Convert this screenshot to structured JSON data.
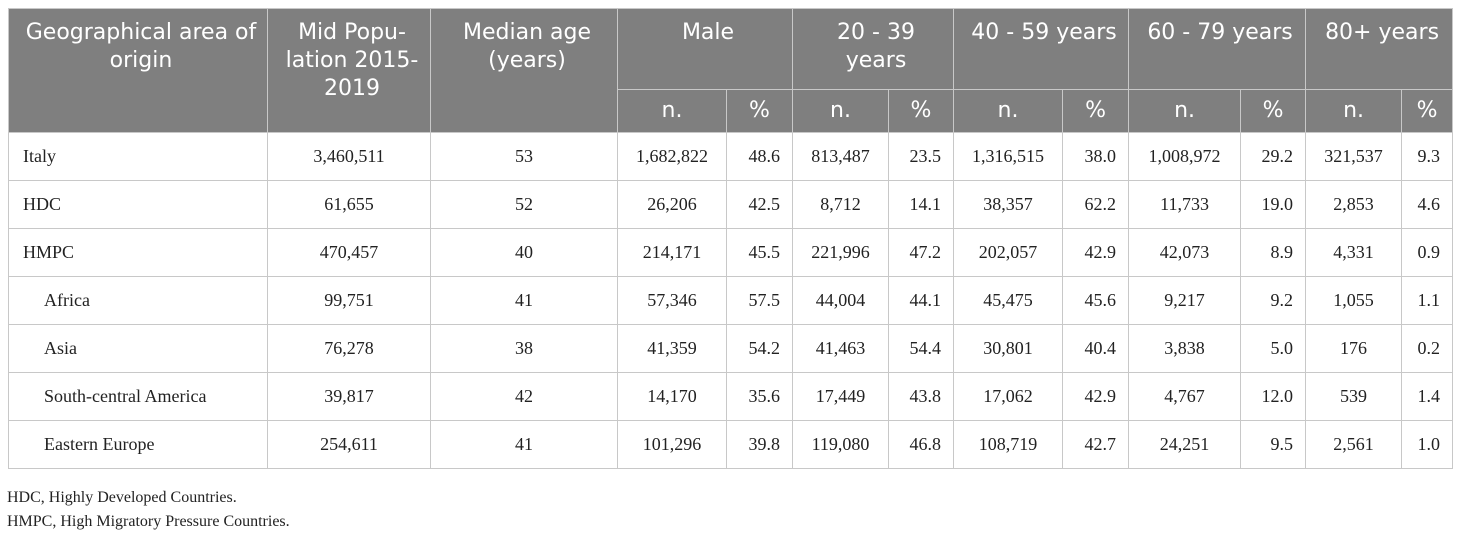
{
  "table": {
    "header": [
      "Geographical area of origin",
      "Mid Popu-lation 2015-2019",
      "Median age (years)",
      "Male",
      "20 - 39 years",
      "40 - 59 years",
      "60 - 79 years",
      "80+ years"
    ],
    "subheader": [
      "n.",
      "%",
      "n.",
      "%",
      "n.",
      "%",
      "n.",
      "%",
      "n.",
      "%"
    ],
    "rows": [
      [
        "Italy",
        "3,460,511",
        "53",
        "1,682,822",
        "48.6",
        "813,487",
        "23.5",
        "1,316,515",
        "38.0",
        "1,008,972",
        "29.2",
        "321,537",
        "9.3"
      ],
      [
        "HDC",
        "61,655",
        "52",
        "26,206",
        "42.5",
        "8,712",
        "14.1",
        "38,357",
        "62.2",
        "11,733",
        "19.0",
        "2,853",
        "4.6"
      ],
      [
        "HMPC",
        "470,457",
        "40",
        "214,171",
        "45.5",
        "221,996",
        "47.2",
        "202,057",
        "42.9",
        "42,073",
        "8.9",
        "4,331",
        "0.9"
      ],
      [
        "Africa",
        "99,751",
        "41",
        "57,346",
        "57.5",
        "44,004",
        "44.1",
        "45,475",
        "45.6",
        "9,217",
        "9.2",
        "1,055",
        "1.1"
      ],
      [
        "Asia",
        "76,278",
        "38",
        "41,359",
        "54.2",
        "41,463",
        "54.4",
        "30,801",
        "40.4",
        "3,838",
        "5.0",
        "176",
        "0.2"
      ],
      [
        "South-central America",
        "39,817",
        "42",
        "14,170",
        "35.6",
        "17,449",
        "43.8",
        "17,062",
        "42.9",
        "4,767",
        "12.0",
        "539",
        "1.4"
      ],
      [
        "Eastern Europe",
        "254,611",
        "41",
        "101,296",
        "39.8",
        "119,080",
        "46.8",
        "108,719",
        "42.7",
        "24,251",
        "9.5",
        "2,561",
        "1.0"
      ]
    ],
    "indented_rows": [
      3,
      4,
      5,
      6
    ]
  },
  "footnotes": [
    "HDC, Highly Developed Countries.",
    "HMPC, High Migratory Pressure Countries."
  ]
}
